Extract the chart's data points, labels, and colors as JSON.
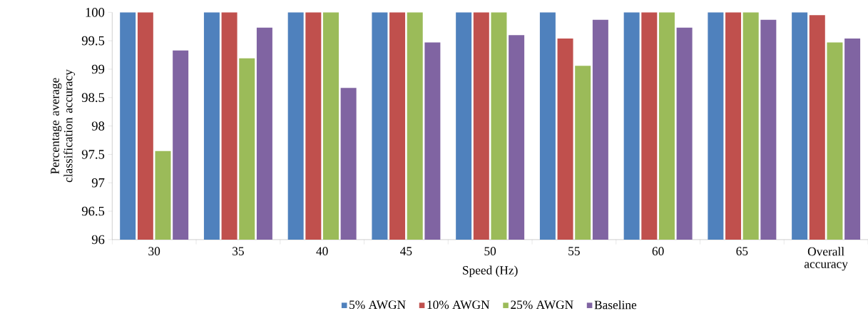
{
  "chart_data": {
    "type": "bar",
    "xlabel": "Speed (Hz)",
    "ylabel": "Percentage average classification accuracy",
    "categories": [
      "30",
      "35",
      "40",
      "45",
      "50",
      "55",
      "60",
      "65",
      "Overall accuracy"
    ],
    "series": [
      {
        "name": "5% AWGN",
        "color": "#4f81bd",
        "values": [
          100,
          100,
          100,
          100,
          100,
          100,
          100,
          100,
          100
        ]
      },
      {
        "name": "10% AWGN",
        "color": "#c0504d",
        "values": [
          100,
          100,
          100,
          100,
          100,
          99.54,
          100,
          100,
          99.95
        ]
      },
      {
        "name": "25% AWGN",
        "color": "#9bbb59",
        "values": [
          97.56,
          99.19,
          100,
          100,
          100,
          99.06,
          100,
          100,
          99.47
        ]
      },
      {
        "name": "Baseline",
        "color": "#8064a2",
        "values": [
          99.33,
          99.73,
          98.67,
          99.47,
          99.6,
          99.87,
          99.73,
          99.87,
          99.54
        ]
      }
    ],
    "ylim": [
      96,
      100
    ],
    "yticks": [
      96,
      96.5,
      97,
      97.5,
      98,
      98.5,
      99,
      99.5,
      100
    ],
    "grid": false,
    "legend": "bottom"
  }
}
